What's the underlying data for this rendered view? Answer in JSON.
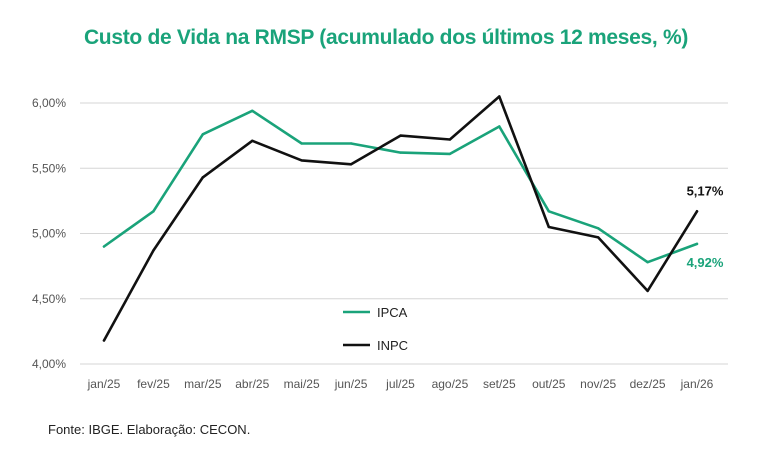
{
  "chart_data": {
    "type": "line",
    "title": "Custo de Vida na RMSP (acumulado dos últimos 12 meses, %)",
    "categories": [
      "jan/25",
      "fev/25",
      "mar/25",
      "abr/25",
      "mai/25",
      "jun/25",
      "jul/25",
      "ago/25",
      "set/25",
      "out/25",
      "nov/25",
      "dez/25",
      "jan/26"
    ],
    "series": [
      {
        "name": "IPCA",
        "color": "#1aa37a",
        "values": [
          4.9,
          5.17,
          5.76,
          5.94,
          5.69,
          5.69,
          5.62,
          5.61,
          5.82,
          5.17,
          5.04,
          4.78,
          4.92
        ]
      },
      {
        "name": "INPC",
        "color": "#111111",
        "values": [
          4.18,
          4.87,
          5.43,
          5.71,
          5.56,
          5.53,
          5.75,
          5.72,
          6.05,
          5.05,
          4.97,
          4.56,
          5.17
        ]
      }
    ],
    "yticks": [
      "6,00%",
      "5,50%",
      "5,00%",
      "4,50%",
      "4,00%"
    ],
    "ylim": [
      4.0,
      6.0
    ],
    "grid": true,
    "legend": "center",
    "end_labels": [
      {
        "series": "IPCA",
        "text": "4,92%",
        "color": "#1aa37a"
      },
      {
        "series": "INPC",
        "text": "5,17%",
        "color": "#111111"
      }
    ],
    "xlabel": "",
    "ylabel": ""
  },
  "source": "Fonte: IBGE. Elaboração: CECON.",
  "title_color": "#1aa37a"
}
